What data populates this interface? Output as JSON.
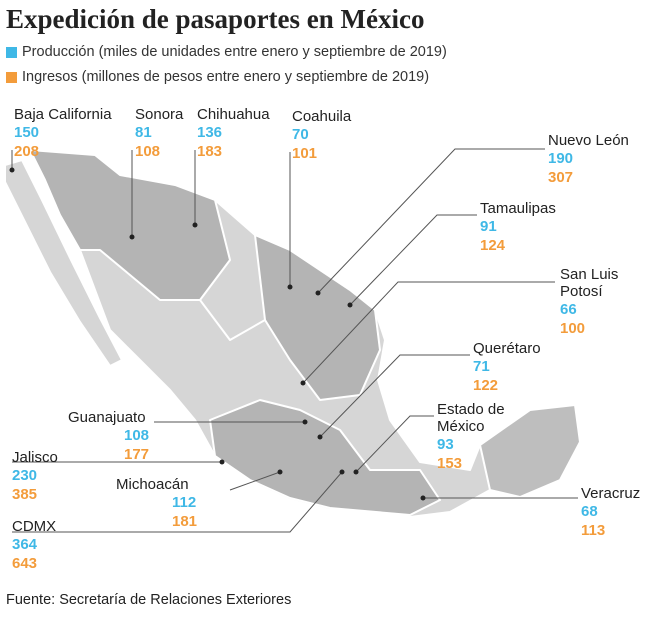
{
  "title": "Expedición de pasaportes en México",
  "legend": [
    {
      "label": "Producción (miles de unidades entre enero y septiembre de 2019)",
      "color": "#3fb8e6"
    },
    {
      "label": "Ingresos (millones de pesos entre enero y septiembre de 2019)",
      "color": "#f39c3b"
    }
  ],
  "states": [
    {
      "name": "Baja California",
      "production": 150,
      "income": 208
    },
    {
      "name": "Sonora",
      "production": 81,
      "income": 108
    },
    {
      "name": "Chihuahua",
      "production": 136,
      "income": 183
    },
    {
      "name": "Coahuila",
      "production": 70,
      "income": 101
    },
    {
      "name": "Nuevo León",
      "production": 190,
      "income": 307
    },
    {
      "name": "Tamaulipas",
      "production": 91,
      "income": 124
    },
    {
      "name": "San Luis Potosí",
      "production": 66,
      "income": 100
    },
    {
      "name": "Querétaro",
      "production": 71,
      "income": 122
    },
    {
      "name": "Estado de México",
      "production": 93,
      "income": 153
    },
    {
      "name": "Veracruz",
      "production": 68,
      "income": 113
    },
    {
      "name": "Guanajuato",
      "production": 108,
      "income": 177
    },
    {
      "name": "Jalisco",
      "production": 230,
      "income": 385
    },
    {
      "name": "Michoacán",
      "production": 112,
      "income": 181
    },
    {
      "name": "CDMX",
      "production": 364,
      "income": 643
    }
  ],
  "source": "Fuente: Secretaría de Relaciones Exteriores"
}
